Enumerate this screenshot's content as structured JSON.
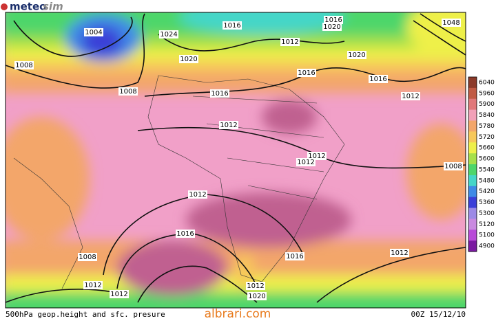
{
  "logo": {
    "brand": "meteo",
    "suffix": "sim"
  },
  "map": {
    "isobar_labels": [
      "1004",
      "1024",
      "1016",
      "1016",
      "1020",
      "1048",
      "1008",
      "1020",
      "1012",
      "1020",
      "1016",
      "1016",
      "1008",
      "1016",
      "1012",
      "1012",
      "1012",
      "1012",
      "1008",
      "1012",
      "1016",
      "1012",
      "1016",
      "1008",
      "1012",
      "1012",
      "1012",
      "1020"
    ]
  },
  "colorbar": [
    {
      "label": "6040",
      "color": "#8b3a2a"
    },
    {
      "label": "5960",
      "color": "#c05a44"
    },
    {
      "label": "5900",
      "color": "#e0787a"
    },
    {
      "label": "5840",
      "color": "#f1a0b8"
    },
    {
      "label": "5780",
      "color": "#f3a66a"
    },
    {
      "label": "5720",
      "color": "#f7c85a"
    },
    {
      "label": "5660",
      "color": "#eef04a"
    },
    {
      "label": "5600",
      "color": "#a6e04a"
    },
    {
      "label": "5540",
      "color": "#4ed66a"
    },
    {
      "label": "5480",
      "color": "#45d6c8"
    },
    {
      "label": "5420",
      "color": "#3f8ae6"
    },
    {
      "label": "5360",
      "color": "#3b3fd8"
    },
    {
      "label": "5300",
      "color": "#9c8ae6"
    },
    {
      "label": "5120",
      "color": "#c98ae0"
    },
    {
      "label": "5100",
      "color": "#b84ad8"
    },
    {
      "label": "4900",
      "color": "#7a1aa0"
    }
  ],
  "footer": {
    "caption": "500hPa geop.height and sfc. presure",
    "source": "albrari.com",
    "timestamp": "00Z 15/12/10"
  }
}
